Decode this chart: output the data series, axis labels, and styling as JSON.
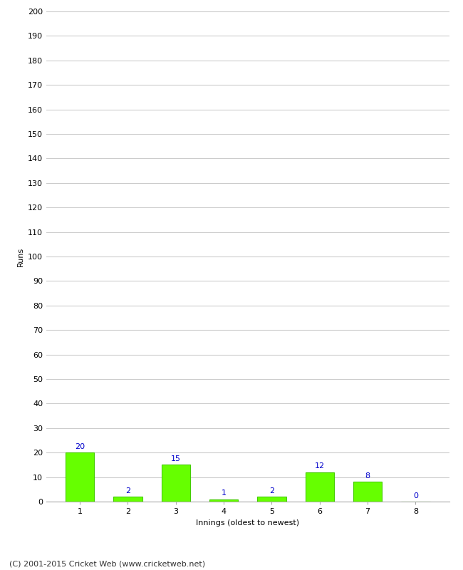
{
  "categories": [
    "1",
    "2",
    "3",
    "4",
    "5",
    "6",
    "7",
    "8"
  ],
  "values": [
    20,
    2,
    15,
    1,
    2,
    12,
    8,
    0
  ],
  "bar_color": "#66ff00",
  "bar_edge_color": "#44cc00",
  "label_color": "#0000cc",
  "xlabel": "Innings (oldest to newest)",
  "ylabel": "Runs",
  "ylim": [
    0,
    200
  ],
  "yticks": [
    0,
    10,
    20,
    30,
    40,
    50,
    60,
    70,
    80,
    90,
    100,
    110,
    120,
    130,
    140,
    150,
    160,
    170,
    180,
    190,
    200
  ],
  "footer": "(C) 2001-2015 Cricket Web (www.cricketweb.net)",
  "background_color": "#ffffff",
  "grid_color": "#cccccc",
  "label_fontsize": 8,
  "axis_tick_fontsize": 8,
  "axis_label_fontsize": 8,
  "footer_fontsize": 8
}
